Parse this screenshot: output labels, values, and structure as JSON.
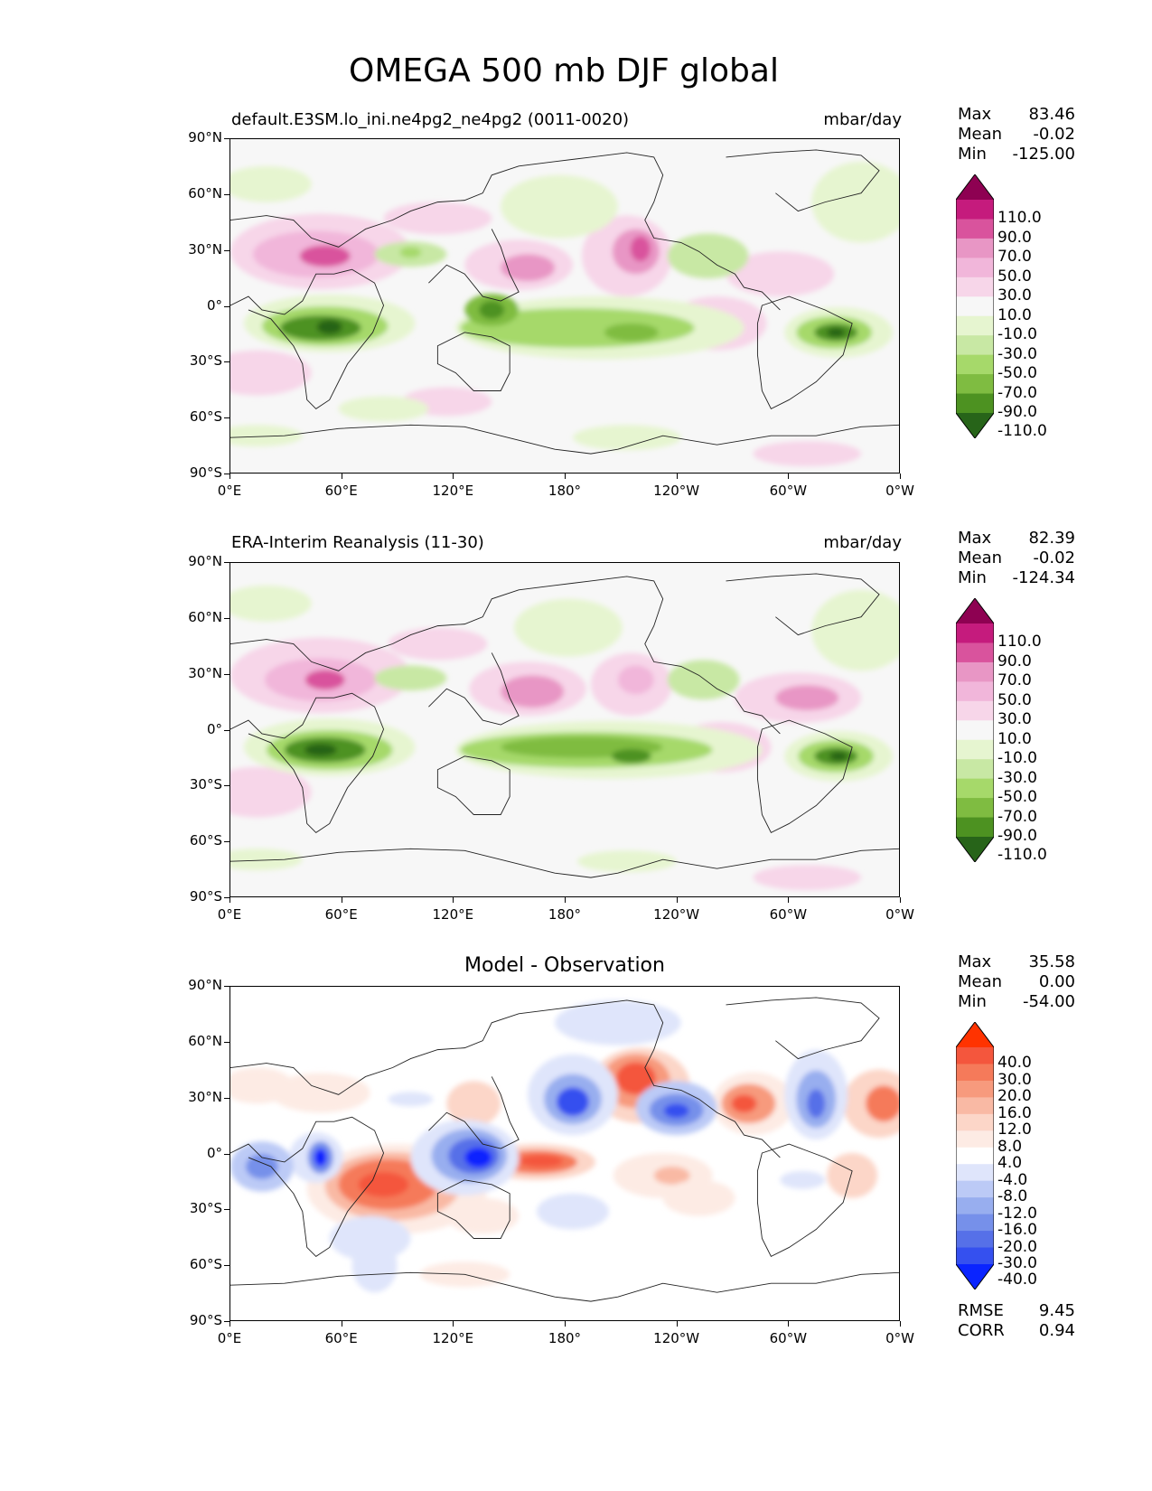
{
  "figure": {
    "title": "OMEGA 500 mb DJF global"
  },
  "axes": {
    "lat_ticks": [
      "90°N",
      "60°N",
      "30°N",
      "0°",
      "30°S",
      "60°S",
      "90°S"
    ],
    "lon_ticks": [
      "0°E",
      "60°E",
      "120°E",
      "180°",
      "120°W",
      "60°W",
      "0°W"
    ]
  },
  "panels": [
    {
      "title_left": "default.E3SM.lo_ini.ne4pg2_ne4pg2 (0011-0020)",
      "title_right": "mbar/day",
      "stats": {
        "max_label": "Max",
        "max": "83.46",
        "mean_label": "Mean",
        "mean": "-0.02",
        "min_label": "Min",
        "min": "-125.00"
      },
      "colorbar": {
        "labels": [
          "110.0",
          "90.0",
          "70.0",
          "50.0",
          "30.0",
          "10.0",
          "-10.0",
          "-30.0",
          "-50.0",
          "-70.0",
          "-90.0",
          "-110.0"
        ],
        "colors": [
          "#8e0152",
          "#c51b7d",
          "#d9539d",
          "#e896c5",
          "#f1b6da",
          "#f7d6e9",
          "#f7f7f7",
          "#e6f5d0",
          "#c8e8a4",
          "#a6d96a",
          "#7fbc41",
          "#4d9221",
          "#276419"
        ]
      }
    },
    {
      "title_left": "ERA-Interim Reanalysis (11-30)",
      "title_right": "mbar/day",
      "stats": {
        "max_label": "Max",
        "max": "82.39",
        "mean_label": "Mean",
        "mean": "-0.02",
        "min_label": "Min",
        "min": "-124.34"
      },
      "colorbar": {
        "labels": [
          "110.0",
          "90.0",
          "70.0",
          "50.0",
          "30.0",
          "10.0",
          "-10.0",
          "-30.0",
          "-50.0",
          "-70.0",
          "-90.0",
          "-110.0"
        ],
        "colors": [
          "#8e0152",
          "#c51b7d",
          "#d9539d",
          "#e896c5",
          "#f1b6da",
          "#f7d6e9",
          "#f7f7f7",
          "#e6f5d0",
          "#c8e8a4",
          "#a6d96a",
          "#7fbc41",
          "#4d9221",
          "#276419"
        ]
      }
    },
    {
      "title_center": "Model - Observation",
      "stats": {
        "max_label": "Max",
        "max": "35.58",
        "mean_label": "Mean",
        "mean": "0.00",
        "min_label": "Min",
        "min": "-54.00"
      },
      "colorbar": {
        "labels": [
          "40.0",
          "30.0",
          "20.0",
          "16.0",
          "12.0",
          "8.0",
          "4.0",
          "-4.0",
          "-8.0",
          "-12.0",
          "-16.0",
          "-20.0",
          "-30.0",
          "-40.0"
        ],
        "colors": [
          "#ff3300",
          "#f4563d",
          "#f57a5a",
          "#f79a7d",
          "#f9b9a4",
          "#fcd6c8",
          "#fdebe4",
          "#ffffff",
          "#dfe5fb",
          "#bccaf6",
          "#98aeef",
          "#7690ea",
          "#5670e8",
          "#3550ef",
          "#0a24ff"
        ]
      },
      "metrics": {
        "rmse_label": "RMSE",
        "rmse": "9.45",
        "corr_label": "CORR",
        "corr": "0.94"
      }
    }
  ]
}
